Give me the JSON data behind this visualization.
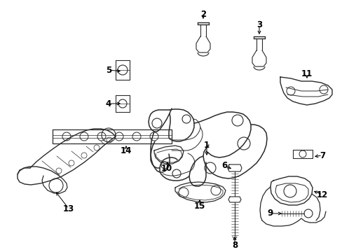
{
  "background": "#ffffff",
  "line_color": "#2a2a2a",
  "text_color": "#000000",
  "fig_width": 4.89,
  "fig_height": 3.6,
  "dpi": 100
}
